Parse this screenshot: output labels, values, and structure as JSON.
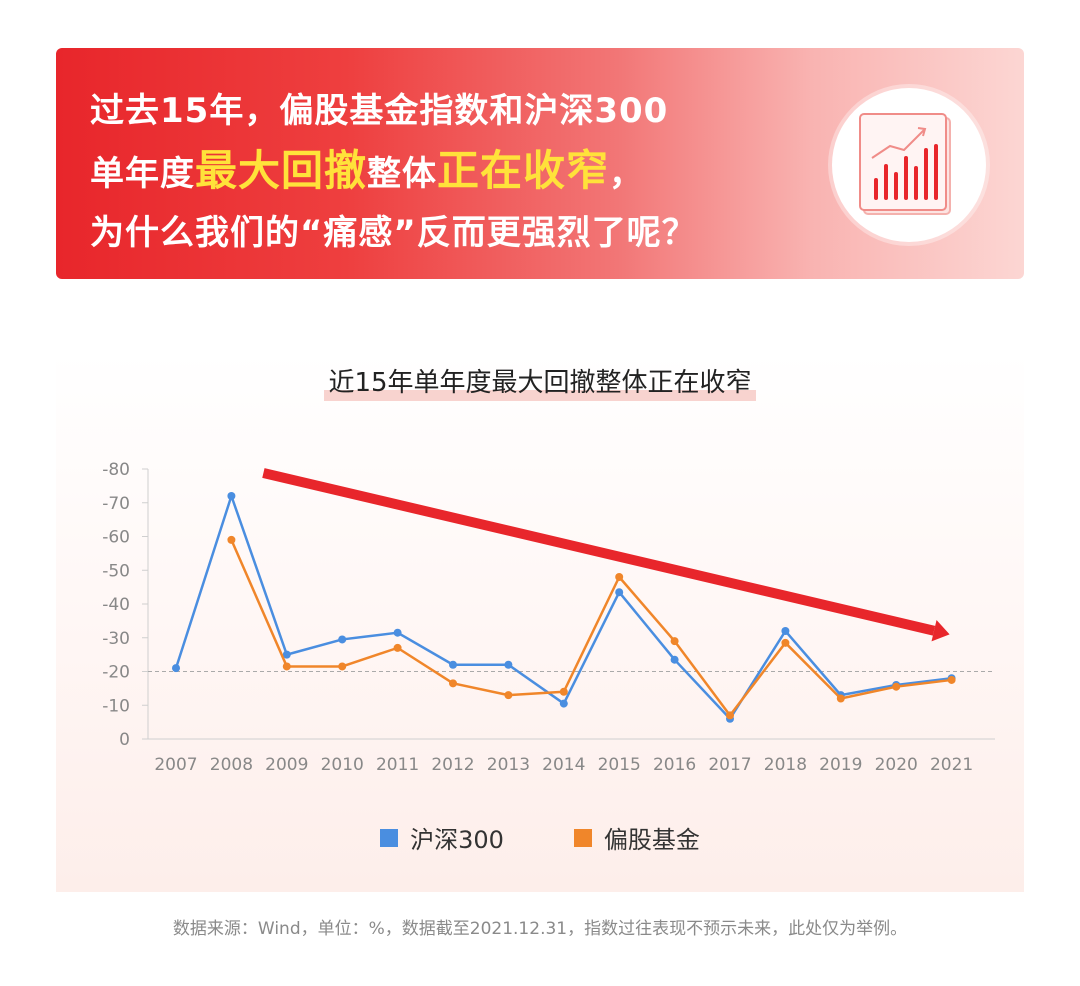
{
  "banner": {
    "line1": "过去15年，偏股基金指数和沪深300",
    "line2_a": "单年度",
    "line2_b": "最大回撤",
    "line2_c": "整体",
    "line2_d": "正在收窄",
    "line2_e": "，",
    "line3": "为什么我们的“痛感”反而更强烈了呢？",
    "icon": "bar-chart-trend-icon"
  },
  "chart_data": {
    "type": "line",
    "title": "近15年单年度最大回撤整体正在收窄",
    "x": [
      "2007",
      "2008",
      "2009",
      "2010",
      "2011",
      "2012",
      "2013",
      "2014",
      "2015",
      "2016",
      "2017",
      "2018",
      "2019",
      "2020",
      "2021"
    ],
    "y_ticks": [
      "-80",
      "-70",
      "-60",
      "-50",
      "-40",
      "-30",
      "-20",
      "-10",
      "0"
    ],
    "ylim": [
      0,
      -80
    ],
    "reference_line": -20,
    "series": [
      {
        "name": "沪深300",
        "color": "#4a8ee0",
        "values": [
          -21,
          -72,
          -25,
          -29.5,
          -31.5,
          -22,
          -22,
          -10.5,
          -43.5,
          -23.5,
          -6,
          -32,
          -13,
          -16,
          -18
        ]
      },
      {
        "name": "偏股基金",
        "color": "#f0862a",
        "values": [
          null,
          -59,
          -21.5,
          -21.5,
          -27,
          -16.5,
          -13,
          -14,
          -48,
          -29,
          -7,
          -28.5,
          -12,
          -15.5,
          -17.5
        ]
      }
    ],
    "trend_arrow": {
      "color": "#e8262b",
      "from": {
        "x": "2008",
        "y": -80
      },
      "to": {
        "x": "2021",
        "y": -31
      }
    },
    "legend": "bottom-center",
    "grid": false
  },
  "footnote": "数据来源：Wind，单位：%，数据截至2021.12.31，指数过往表现不预示未来，此处仅为举例。"
}
